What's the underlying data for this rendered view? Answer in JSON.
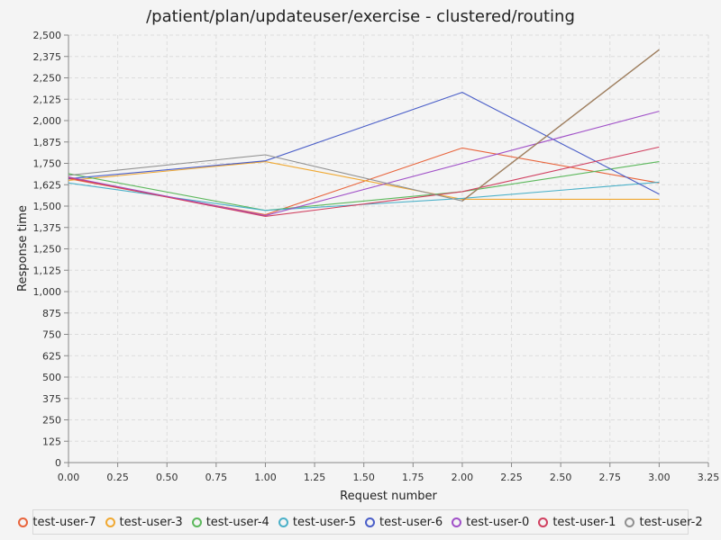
{
  "chart_data": {
    "type": "line",
    "title": "/patient/plan/updateuser/exercise - clustered/routing",
    "xlabel": "Request number",
    "ylabel": "Response time",
    "xlim": [
      0,
      3.25
    ],
    "ylim": [
      0,
      2500
    ],
    "x_ticks": [
      "0.00",
      "0.25",
      "0.50",
      "0.75",
      "1.00",
      "1.25",
      "1.50",
      "1.75",
      "2.00",
      "2.25",
      "2.50",
      "2.75",
      "3.00",
      "3.25"
    ],
    "y_ticks": [
      "0",
      "125",
      "250",
      "375",
      "500",
      "625",
      "750",
      "875",
      "1,000",
      "1,125",
      "1,250",
      "1,375",
      "1,500",
      "1,625",
      "1,750",
      "1,875",
      "2,000",
      "2,125",
      "2,250",
      "2,375",
      "2,500"
    ],
    "grid": true,
    "legend_position": "bottom",
    "x": [
      0,
      1,
      2,
      3
    ],
    "series": [
      {
        "name": "test-user-7",
        "color": "#e8643c",
        "values": [
          1660,
          1450,
          1840,
          1635
        ]
      },
      {
        "name": "test-user-3",
        "color": "#f0a830",
        "values": [
          1650,
          1760,
          1540,
          1540
        ]
      },
      {
        "name": "test-user-4",
        "color": "#5cb85c",
        "values": [
          1690,
          1475,
          1585,
          1760
        ]
      },
      {
        "name": "test-user-5",
        "color": "#4ab0c8",
        "values": [
          1635,
          1475,
          1545,
          1640
        ]
      },
      {
        "name": "test-user-6",
        "color": "#4a5ec8",
        "values": [
          1660,
          1765,
          2165,
          1570
        ]
      },
      {
        "name": "test-user-0",
        "color": "#a050c8",
        "values": [
          1670,
          1445,
          1750,
          2055
        ]
      },
      {
        "name": "test-user-1",
        "color": "#d04060",
        "values": [
          1665,
          1440,
          1585,
          1845
        ]
      },
      {
        "name": "test-user-2",
        "color": "#909090",
        "values": [
          1680,
          1800,
          1530,
          2415
        ]
      }
    ],
    "overlay": {
      "name": "",
      "color": "#a08060",
      "x": [
        2,
        3
      ],
      "values": [
        1530,
        2415
      ]
    }
  }
}
